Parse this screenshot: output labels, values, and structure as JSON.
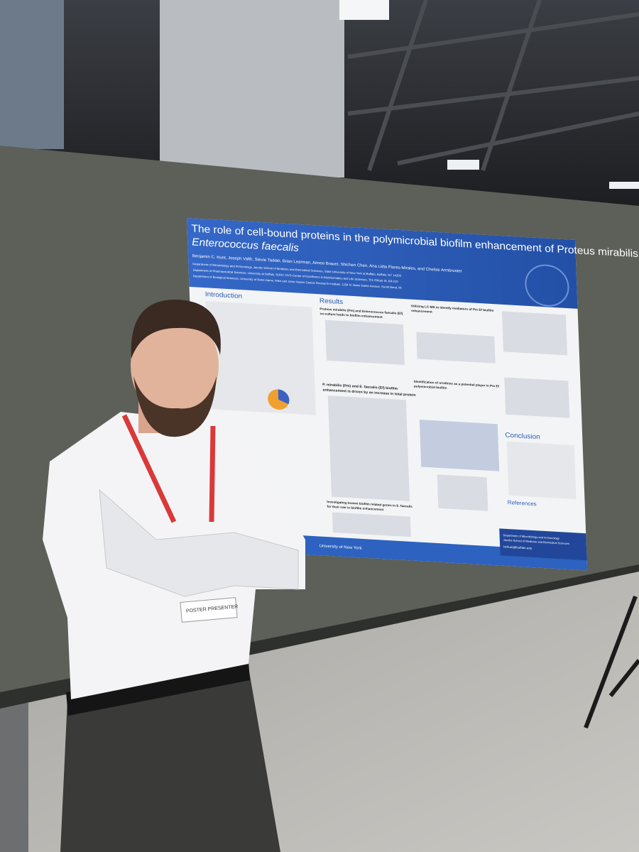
{
  "poster": {
    "title_line1": "The role of cell-bound proteins in the polymicrobial biofilm enhancement of Proteus mirabilis and",
    "title_line2": "Enterococcus faecalis",
    "authors": "Benjamin C. Hunt, Joseph Valth, Stevie Taddei, Brian Learman, Aimee Brauer, Shichen Chen, Ana Lidia Flores-Mirales, and Chelsie Armbruster",
    "affiliations": [
      "Department of Microbiology and Immunology, Jacobs School of Medicine and Biomedical Sciences, State University of New York at Buffalo, Buffalo, NY 14203",
      "Department of Pharmaceutical Sciences, University at Buffalo, SUNY; NYS Center of Excellence in Bioinformatics and Life Sciences, 701 Ellicott St, B3-210",
      "Department of Biological Sciences, University of Notre Dame, Mike and Josie Harper Cancer Research Institute, 1234 N. Notre Dame Avenue, South Bend, IN"
    ],
    "sections": {
      "introduction": "Introduction",
      "results": "Results",
      "conclusion": "Conclusion",
      "references": "References"
    },
    "result_headings": [
      "Proteus mirabilis (Pm) and Enterococcus faecalis (Ef)",
      "co-culture leads to biofilm enhancement",
      "P. mirabilis (Pm) and E. faecalis (Ef) biofilm",
      "enhancement is driven by an increase in total protein",
      "Investigating known biofilm related genes in E. faecalis",
      "for their role in biofilm enhancement",
      "Utilizing LC-MS to identify mediators of Pm Ef biofilm",
      "enhancement",
      "Identification of ornithine as a potential player in Pm Ef",
      "polymicrobial biofilm"
    ],
    "footer": {
      "university": "University of New York",
      "department": "Department of Microbiology and Immunology",
      "school": "Jacobs School of Medicine and Biomedical Sciences",
      "email": "bchunt@buffalo.edu"
    }
  },
  "badge": {
    "label": "POSTER PRESENTER"
  }
}
